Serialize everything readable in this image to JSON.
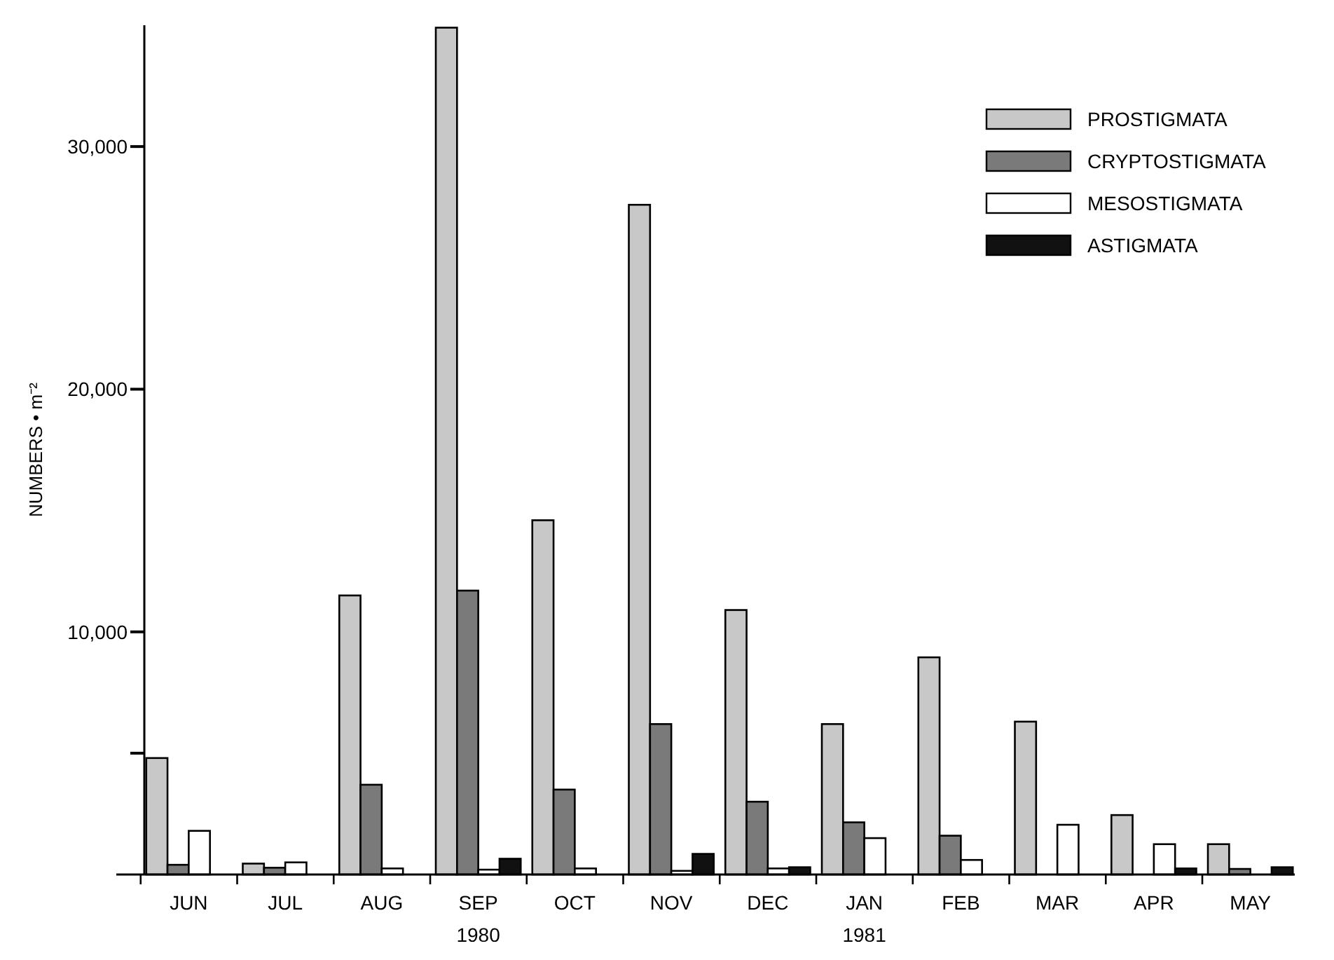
{
  "chart_data": {
    "type": "bar",
    "ylabel": "NUMBERS • m⁻²",
    "categories": [
      "JUN",
      "JUL",
      "AUG",
      "SEP",
      "OCT",
      "NOV",
      "DEC",
      "JAN",
      "FEB",
      "MAR",
      "APR",
      "MAY"
    ],
    "series": [
      {
        "name": "PROSTIGMATA",
        "color": "#c8c8c8",
        "values": [
          4800,
          450,
          11500,
          34900,
          14600,
          27600,
          10900,
          6200,
          8950,
          6300,
          2450,
          1250
        ]
      },
      {
        "name": "CRYPTOSTIGMATA",
        "color": "#7a7a7a",
        "values": [
          400,
          280,
          3700,
          11700,
          3500,
          6200,
          3000,
          2150,
          1600,
          null,
          null,
          230
        ]
      },
      {
        "name": "MESOSTIGMATA",
        "color": "#ffffff",
        "values": [
          1800,
          500,
          250,
          200,
          250,
          150,
          250,
          1500,
          600,
          2050,
          1250,
          null
        ]
      },
      {
        "name": "ASTIGMATA",
        "color": "#111111",
        "values": [
          null,
          null,
          null,
          650,
          null,
          850,
          300,
          null,
          null,
          null,
          250,
          300
        ]
      }
    ],
    "ylim": [
      0,
      35000
    ],
    "yticks": [
      {
        "value": 5000,
        "label": null
      },
      {
        "value": 10000,
        "label": "10,000"
      },
      {
        "value": 20000,
        "label": "20,000"
      },
      {
        "value": 30000,
        "label": "30,000"
      }
    ],
    "legend": "top right",
    "grid": false,
    "annotations": [
      "1980",
      "1981"
    ]
  }
}
